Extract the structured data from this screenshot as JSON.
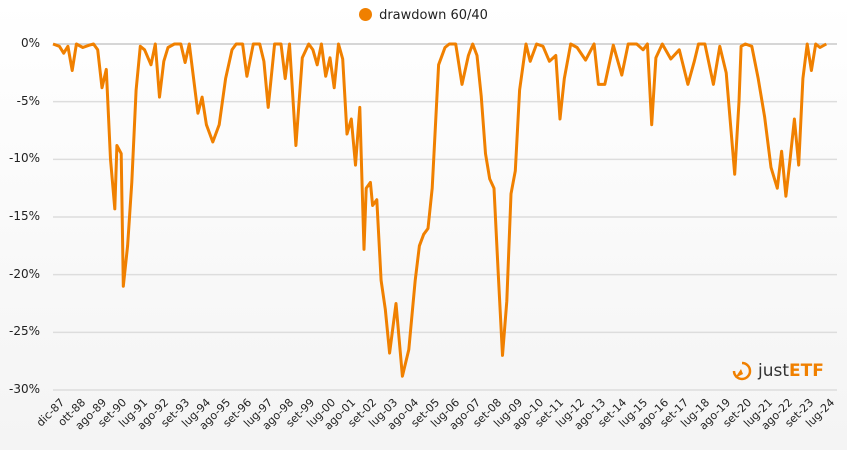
{
  "legend": {
    "label": "drawdown 60/40",
    "color": "#f08000"
  },
  "logo": {
    "text_plain": "just",
    "text_bold": "ETF"
  },
  "chart_data": {
    "type": "line",
    "title": "",
    "xlabel": "",
    "ylabel": "",
    "ylim": [
      -30,
      0
    ],
    "grid": true,
    "legend_position": "top",
    "y_ticks": [
      "0%",
      "-5%",
      "-10%",
      "-15%",
      "-20%",
      "-25%",
      "-30%"
    ],
    "y_tick_values": [
      0,
      -5,
      -10,
      -15,
      -20,
      -25,
      -30
    ],
    "x_ticks": [
      "dic-87",
      "ott-88",
      "ago-89",
      "set-90",
      "lug-91",
      "ago-92",
      "set-93",
      "lug-94",
      "ago-95",
      "set-96",
      "lug-97",
      "ago-98",
      "set-99",
      "lug-00",
      "ago-01",
      "set-02",
      "lug-03",
      "ago-04",
      "set-05",
      "lug-06",
      "ago-07",
      "set-08",
      "lug-09",
      "ago-10",
      "set-11",
      "lug-12",
      "ago-13",
      "set-14",
      "lug-15",
      "ago-16",
      "set-17",
      "lug-18",
      "ago-19",
      "set-20",
      "lug-21",
      "ago-22",
      "set-23",
      "lug-24"
    ],
    "series": [
      {
        "name": "drawdown 60/40",
        "color": "#f08000",
        "x_year": [
          1987.9,
          1988.2,
          1988.4,
          1988.6,
          1988.8,
          1989.0,
          1989.3,
          1989.6,
          1989.8,
          1990.0,
          1990.2,
          1990.4,
          1990.6,
          1990.8,
          1990.9,
          1991.1,
          1991.2,
          1991.4,
          1991.6,
          1991.8,
          1992.0,
          1992.2,
          1992.5,
          1992.7,
          1992.9,
          1993.1,
          1993.3,
          1993.6,
          1993.9,
          1994.1,
          1994.3,
          1994.5,
          1994.7,
          1994.9,
          1995.1,
          1995.4,
          1995.7,
          1996.0,
          1996.3,
          1996.5,
          1996.8,
          1997.0,
          1997.3,
          1997.6,
          1997.8,
          1998.0,
          1998.3,
          1998.6,
          1998.8,
          1999.0,
          1999.3,
          1999.6,
          1999.9,
          2000.1,
          2000.3,
          2000.5,
          2000.7,
          2000.9,
          2001.1,
          2001.3,
          2001.5,
          2001.7,
          2001.9,
          2002.1,
          2002.3,
          2002.5,
          2002.6,
          2002.8,
          2002.9,
          2003.1,
          2003.3,
          2003.5,
          2003.7,
          2004.0,
          2004.3,
          2004.6,
          2004.9,
          2005.1,
          2005.3,
          2005.5,
          2005.7,
          2006.0,
          2006.3,
          2006.5,
          2006.8,
          2007.1,
          2007.4,
          2007.6,
          2007.8,
          2008.0,
          2008.2,
          2008.4,
          2008.6,
          2008.8,
          2009.0,
          2009.2,
          2009.4,
          2009.6,
          2009.8,
          2010.1,
          2010.3,
          2010.6,
          2010.9,
          2011.2,
          2011.5,
          2011.7,
          2011.9,
          2012.2,
          2012.5,
          2012.9,
          2013.3,
          2013.5,
          2013.8,
          2014.2,
          2014.6,
          2014.9,
          2015.3,
          2015.6,
          2015.8,
          2016.0,
          2016.2,
          2016.5,
          2016.9,
          2017.3,
          2017.7,
          2018.0,
          2018.2,
          2018.5,
          2018.9,
          2019.2,
          2019.5,
          2019.9,
          2020.1,
          2020.2,
          2020.4,
          2020.7,
          2021.0,
          2021.3,
          2021.6,
          2021.9,
          2022.1,
          2022.3,
          2022.5,
          2022.7,
          2022.9,
          2023.1,
          2023.3,
          2023.5,
          2023.7,
          2023.9,
          2024.2,
          2024.5,
          2024.7
        ],
        "values": [
          0,
          -0.2,
          -0.8,
          -0.2,
          -2.3,
          0,
          -0.3,
          -0.1,
          0,
          -0.5,
          -3.8,
          -2.2,
          -10,
          -14.3,
          -8.8,
          -9.5,
          -21,
          -17.5,
          -12,
          -4,
          -0.2,
          -0.5,
          -1.8,
          0,
          -4.6,
          -1.5,
          -0.3,
          0,
          0,
          -1.6,
          0,
          -3,
          -6,
          -4.6,
          -7,
          -8.5,
          -7,
          -3,
          -0.5,
          0,
          0,
          -2.8,
          0,
          0,
          -1.5,
          -5.5,
          0,
          0,
          -3,
          0,
          -8.8,
          -1.2,
          0,
          -0.5,
          -1.8,
          0,
          -2.8,
          -1.2,
          -3.8,
          0,
          -1.3,
          -7.8,
          -6.5,
          -10.5,
          -5.5,
          -17.8,
          -12.5,
          -12,
          -14,
          -13.5,
          -20.5,
          -23,
          -26.8,
          -22.5,
          -28.8,
          -26.5,
          -20.5,
          -17.5,
          -16.5,
          -16,
          -12.5,
          -1.8,
          -0.3,
          0,
          0,
          -3.5,
          -1,
          0,
          -1,
          -4.5,
          -9.5,
          -11.7,
          -12.5,
          -20,
          -27,
          -22.3,
          -13,
          -11,
          -4,
          0,
          -1.5,
          0,
          -0.2,
          -1.5,
          -1,
          -6.5,
          -3,
          0,
          -0.3,
          -1.4,
          0,
          -3.5,
          -3.5,
          -0.1,
          -2.7,
          0,
          0,
          -0.5,
          0,
          -7,
          -1.2,
          0,
          -1.3,
          -0.5,
          -3.5,
          -1.5,
          0,
          0,
          -3.5,
          -0.2,
          -2.5,
          -11.3,
          -5,
          -0.2,
          0,
          -0.2,
          -3,
          -6.3,
          -10.7,
          -12.5,
          -9.3,
          -13.2,
          -10,
          -6.5,
          -10.5,
          -3,
          0,
          -2.3,
          0,
          -0.3,
          0
        ]
      }
    ]
  }
}
